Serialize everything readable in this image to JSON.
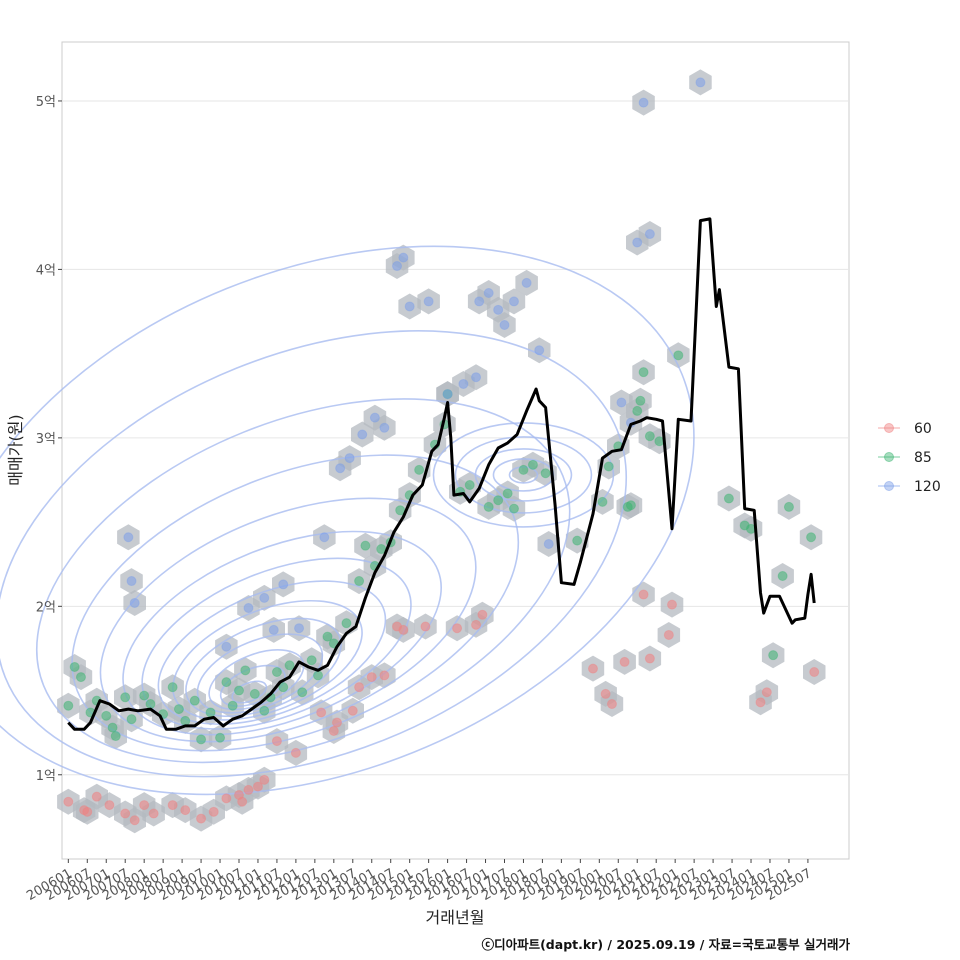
{
  "chart_data": {
    "type": "scatter",
    "xlabel": "거래년월",
    "ylabel": "매매가(원)",
    "y_unit": "억",
    "ylim": [
      0.5,
      5.35
    ],
    "xlim": [
      "2005-11",
      "2026-08"
    ],
    "y_ticks": [
      {
        "value": 1,
        "label": "1억"
      },
      {
        "value": 2,
        "label": "2억"
      },
      {
        "value": 3,
        "label": "3억"
      },
      {
        "value": 4,
        "label": "4억"
      },
      {
        "value": 5,
        "label": "5억"
      }
    ],
    "x_ticks": [
      "200601",
      "200607",
      "200701",
      "200707",
      "200801",
      "200807",
      "200901",
      "200907",
      "201001",
      "201007",
      "201101",
      "201107",
      "201201",
      "201207",
      "201301",
      "201307",
      "201401",
      "201407",
      "201501",
      "201507",
      "201601",
      "201607",
      "201701",
      "201707",
      "201801",
      "201807",
      "201901",
      "201907",
      "202001",
      "202007",
      "202101",
      "202107",
      "202201",
      "202207",
      "202301",
      "202307",
      "202401",
      "202407",
      "202501",
      "202507"
    ],
    "legend": {
      "position": "right",
      "entries": [
        {
          "name": "60",
          "color": "#f08080"
        },
        {
          "name": "85",
          "color": "#3cb371"
        },
        {
          "name": "120",
          "color": "#7b9ee8"
        }
      ]
    },
    "hexbin_color": "#b4b9c0",
    "density_contour_color": "#a8bcf0",
    "trend_line": {
      "name": "moving median",
      "color": "#000000",
      "points": [
        [
          "2006-01",
          1.31
        ],
        [
          "2006-03",
          1.27
        ],
        [
          "2006-06",
          1.27
        ],
        [
          "2006-08",
          1.31
        ],
        [
          "2006-11",
          1.44
        ],
        [
          "2007-02",
          1.42
        ],
        [
          "2007-05",
          1.38
        ],
        [
          "2007-08",
          1.39
        ],
        [
          "2007-11",
          1.38
        ],
        [
          "2008-03",
          1.39
        ],
        [
          "2008-06",
          1.35
        ],
        [
          "2008-08",
          1.27
        ],
        [
          "2008-11",
          1.27
        ],
        [
          "2009-02",
          1.29
        ],
        [
          "2009-05",
          1.29
        ],
        [
          "2009-08",
          1.33
        ],
        [
          "2009-11",
          1.34
        ],
        [
          "2010-02",
          1.29
        ],
        [
          "2010-05",
          1.33
        ],
        [
          "2010-08",
          1.35
        ],
        [
          "2010-11",
          1.39
        ],
        [
          "2011-02",
          1.43
        ],
        [
          "2011-05",
          1.48
        ],
        [
          "2011-08",
          1.55
        ],
        [
          "2011-11",
          1.58
        ],
        [
          "2012-02",
          1.67
        ],
        [
          "2012-05",
          1.64
        ],
        [
          "2012-08",
          1.62
        ],
        [
          "2012-11",
          1.65
        ],
        [
          "2013-02",
          1.76
        ],
        [
          "2013-05",
          1.84
        ],
        [
          "2013-08",
          1.88
        ],
        [
          "2013-11",
          2.05
        ],
        [
          "2014-02",
          2.2
        ],
        [
          "2014-05",
          2.3
        ],
        [
          "2014-08",
          2.44
        ],
        [
          "2014-11",
          2.53
        ],
        [
          "2015-02",
          2.66
        ],
        [
          "2015-05",
          2.72
        ],
        [
          "2015-08",
          2.92
        ],
        [
          "2015-10",
          2.96
        ],
        [
          "2015-12",
          3.12
        ],
        [
          "2016-01",
          3.21
        ],
        [
          "2016-02",
          3.0
        ],
        [
          "2016-03",
          2.66
        ],
        [
          "2016-06",
          2.67
        ],
        [
          "2016-08",
          2.62
        ],
        [
          "2016-11",
          2.7
        ],
        [
          "2017-02",
          2.84
        ],
        [
          "2017-05",
          2.94
        ],
        [
          "2017-08",
          2.97
        ],
        [
          "2017-11",
          3.02
        ],
        [
          "2018-02",
          3.16
        ],
        [
          "2018-05",
          3.29
        ],
        [
          "2018-06",
          3.22
        ],
        [
          "2018-08",
          3.18
        ],
        [
          "2018-11",
          2.6
        ],
        [
          "2019-01",
          2.14
        ],
        [
          "2019-05",
          2.13
        ],
        [
          "2019-07",
          2.26
        ],
        [
          "2019-11",
          2.55
        ],
        [
          "2020-02",
          2.88
        ],
        [
          "2020-05",
          2.92
        ],
        [
          "2020-08",
          2.93
        ],
        [
          "2020-11",
          3.08
        ],
        [
          "2021-02",
          3.1
        ],
        [
          "2021-04",
          3.12
        ],
        [
          "2021-07",
          3.11
        ],
        [
          "2021-09",
          3.1
        ],
        [
          "2021-12",
          2.46
        ],
        [
          "2022-02",
          3.11
        ],
        [
          "2022-06",
          3.1
        ],
        [
          "2022-09",
          4.29
        ],
        [
          "2022-12",
          4.3
        ],
        [
          "2023-02",
          3.78
        ],
        [
          "2023-03",
          3.88
        ],
        [
          "2023-06",
          3.42
        ],
        [
          "2023-09",
          3.41
        ],
        [
          "2023-11",
          2.58
        ],
        [
          "2024-02",
          2.57
        ],
        [
          "2024-04",
          2.08
        ],
        [
          "2024-05",
          1.96
        ],
        [
          "2024-07",
          2.06
        ],
        [
          "2024-10",
          2.06
        ],
        [
          "2025-02",
          1.9
        ],
        [
          "2025-03",
          1.92
        ],
        [
          "2025-06",
          1.93
        ],
        [
          "2025-07",
          2.07
        ],
        [
          "2025-08",
          2.19
        ],
        [
          "2025-09",
          2.02
        ]
      ]
    },
    "series": [
      {
        "name": "60",
        "points": [
          [
            "2006-01",
            0.84
          ],
          [
            "2006-06",
            0.79
          ],
          [
            "2006-07",
            0.78
          ],
          [
            "2006-10",
            0.87
          ],
          [
            "2007-02",
            0.82
          ],
          [
            "2007-07",
            0.77
          ],
          [
            "2007-10",
            0.73
          ],
          [
            "2008-01",
            0.82
          ],
          [
            "2008-04",
            0.77
          ],
          [
            "2008-10",
            0.82
          ],
          [
            "2009-02",
            0.79
          ],
          [
            "2009-07",
            0.74
          ],
          [
            "2009-11",
            0.78
          ],
          [
            "2010-03",
            0.86
          ],
          [
            "2010-07",
            0.88
          ],
          [
            "2010-08",
            0.84
          ],
          [
            "2010-10",
            0.91
          ],
          [
            "2011-01",
            0.93
          ],
          [
            "2011-03",
            0.97
          ],
          [
            "2011-07",
            1.2
          ],
          [
            "2012-01",
            1.13
          ],
          [
            "2012-09",
            1.37
          ],
          [
            "2013-01",
            1.26
          ],
          [
            "2013-02",
            1.31
          ],
          [
            "2013-07",
            1.38
          ],
          [
            "2013-09",
            1.52
          ],
          [
            "2014-01",
            1.58
          ],
          [
            "2014-05",
            1.59
          ],
          [
            "2014-09",
            1.88
          ],
          [
            "2014-11",
            1.86
          ],
          [
            "2015-06",
            1.88
          ],
          [
            "2016-04",
            1.87
          ],
          [
            "2016-10",
            1.89
          ],
          [
            "2016-12",
            1.95
          ],
          [
            "2019-11",
            1.63
          ],
          [
            "2020-03",
            1.48
          ],
          [
            "2020-05",
            1.42
          ],
          [
            "2020-09",
            1.67
          ],
          [
            "2021-03",
            2.07
          ],
          [
            "2021-05",
            1.69
          ],
          [
            "2021-11",
            1.83
          ],
          [
            "2021-12",
            2.01
          ],
          [
            "2024-04",
            1.43
          ],
          [
            "2024-06",
            1.49
          ],
          [
            "2025-09",
            1.61
          ]
        ]
      },
      {
        "name": "85",
        "points": [
          [
            "2006-01",
            1.41
          ],
          [
            "2006-03",
            1.64
          ],
          [
            "2006-05",
            1.58
          ],
          [
            "2006-08",
            1.37
          ],
          [
            "2006-10",
            1.44
          ],
          [
            "2007-01",
            1.35
          ],
          [
            "2007-03",
            1.28
          ],
          [
            "2007-04",
            1.23
          ],
          [
            "2007-07",
            1.46
          ],
          [
            "2007-09",
            1.33
          ],
          [
            "2008-01",
            1.47
          ],
          [
            "2008-03",
            1.42
          ],
          [
            "2008-07",
            1.36
          ],
          [
            "2008-10",
            1.52
          ],
          [
            "2008-12",
            1.39
          ],
          [
            "2009-02",
            1.32
          ],
          [
            "2009-05",
            1.44
          ],
          [
            "2009-07",
            1.21
          ],
          [
            "2009-10",
            1.37
          ],
          [
            "2010-01",
            1.22
          ],
          [
            "2010-03",
            1.55
          ],
          [
            "2010-05",
            1.41
          ],
          [
            "2010-07",
            1.5
          ],
          [
            "2010-09",
            1.62
          ],
          [
            "2010-12",
            1.48
          ],
          [
            "2011-03",
            1.38
          ],
          [
            "2011-05",
            1.46
          ],
          [
            "2011-07",
            1.61
          ],
          [
            "2011-09",
            1.52
          ],
          [
            "2011-11",
            1.65
          ],
          [
            "2012-03",
            1.49
          ],
          [
            "2012-06",
            1.68
          ],
          [
            "2012-08",
            1.59
          ],
          [
            "2012-11",
            1.82
          ],
          [
            "2013-01",
            1.78
          ],
          [
            "2013-05",
            1.9
          ],
          [
            "2013-09",
            2.15
          ],
          [
            "2013-11",
            2.36
          ],
          [
            "2014-02",
            2.24
          ],
          [
            "2014-04",
            2.34
          ],
          [
            "2014-07",
            2.38
          ],
          [
            "2014-10",
            2.57
          ],
          [
            "2015-01",
            2.66
          ],
          [
            "2015-04",
            2.81
          ],
          [
            "2015-09",
            2.96
          ],
          [
            "2015-12",
            3.08
          ],
          [
            "2016-01",
            3.26
          ],
          [
            "2016-05",
            2.68
          ],
          [
            "2016-08",
            2.72
          ],
          [
            "2017-02",
            2.59
          ],
          [
            "2017-05",
            2.63
          ],
          [
            "2017-08",
            2.67
          ],
          [
            "2017-10",
            2.58
          ],
          [
            "2018-01",
            2.81
          ],
          [
            "2018-04",
            2.84
          ],
          [
            "2018-08",
            2.79
          ],
          [
            "2019-06",
            2.39
          ],
          [
            "2020-02",
            2.62
          ],
          [
            "2020-04",
            2.83
          ],
          [
            "2020-07",
            2.95
          ],
          [
            "2020-10",
            2.59
          ],
          [
            "2020-11",
            2.6
          ],
          [
            "2021-01",
            3.16
          ],
          [
            "2021-02",
            3.22
          ],
          [
            "2021-03",
            3.39
          ],
          [
            "2021-05",
            3.01
          ],
          [
            "2021-08",
            2.98
          ],
          [
            "2022-02",
            3.49
          ],
          [
            "2023-06",
            2.64
          ],
          [
            "2023-11",
            2.48
          ],
          [
            "2024-01",
            2.46
          ],
          [
            "2024-08",
            1.71
          ],
          [
            "2024-11",
            2.18
          ],
          [
            "2025-01",
            2.59
          ],
          [
            "2025-08",
            2.41
          ]
        ]
      },
      {
        "name": "120",
        "points": [
          [
            "2007-08",
            2.41
          ],
          [
            "2007-09",
            2.15
          ],
          [
            "2007-10",
            2.02
          ],
          [
            "2010-03",
            1.76
          ],
          [
            "2010-10",
            1.99
          ],
          [
            "2011-03",
            2.05
          ],
          [
            "2011-06",
            1.86
          ],
          [
            "2011-09",
            2.13
          ],
          [
            "2012-02",
            1.87
          ],
          [
            "2012-10",
            2.41
          ],
          [
            "2013-03",
            2.82
          ],
          [
            "2013-06",
            2.88
          ],
          [
            "2013-10",
            3.02
          ],
          [
            "2014-02",
            3.12
          ],
          [
            "2014-05",
            3.06
          ],
          [
            "2014-09",
            4.02
          ],
          [
            "2014-11",
            4.07
          ],
          [
            "2015-01",
            3.78
          ],
          [
            "2015-07",
            3.81
          ],
          [
            "2016-01",
            3.26
          ],
          [
            "2016-06",
            3.32
          ],
          [
            "2016-10",
            3.36
          ],
          [
            "2016-11",
            3.81
          ],
          [
            "2017-02",
            3.86
          ],
          [
            "2017-05",
            3.76
          ],
          [
            "2017-07",
            3.67
          ],
          [
            "2017-10",
            3.81
          ],
          [
            "2018-02",
            3.92
          ],
          [
            "2018-06",
            3.52
          ],
          [
            "2018-09",
            2.37
          ],
          [
            "2020-08",
            3.21
          ],
          [
            "2020-11",
            3.09
          ],
          [
            "2021-01",
            4.16
          ],
          [
            "2021-03",
            4.99
          ],
          [
            "2021-05",
            4.21
          ],
          [
            "2022-09",
            5.11
          ]
        ]
      }
    ]
  },
  "caption": "ⓒ디아파트(dapt.kr) / 2025.09.19 / 자료=국토교통부 실거래가"
}
